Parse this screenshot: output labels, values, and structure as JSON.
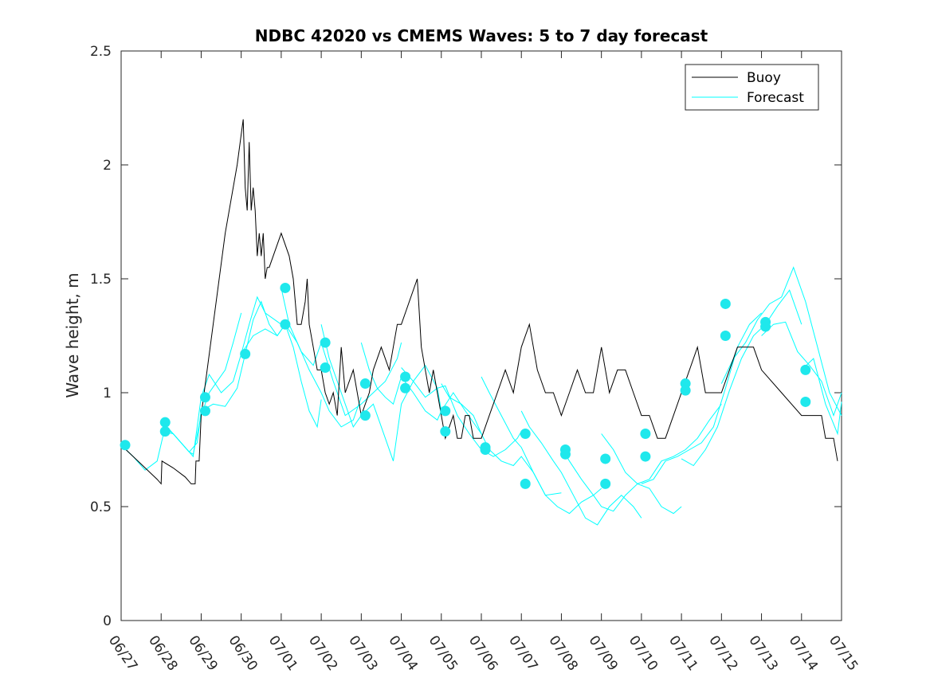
{
  "chart_data": {
    "type": "line",
    "title": "NDBC 42020 vs CMEMS Waves: 5 to 7 day forecast",
    "xlabel": "",
    "ylabel": "Wave height, m",
    "x_ticks": [
      "06/27",
      "06/28",
      "06/29",
      "06/30",
      "07/01",
      "07/02",
      "07/03",
      "07/04",
      "07/05",
      "07/06",
      "07/07",
      "07/08",
      "07/09",
      "07/10",
      "07/11",
      "07/12",
      "07/13",
      "07/14",
      "07/15"
    ],
    "y_ticks": [
      "0",
      "0.5",
      "1",
      "1.5",
      "2",
      "2.5"
    ],
    "xlim_days": [
      0,
      18
    ],
    "ylim": [
      0,
      2.5
    ],
    "legend": {
      "position": "top-right",
      "entries": [
        "Buoy",
        "Forecast"
      ]
    },
    "colors": {
      "buoy": "#000000",
      "forecast": "#00ffff",
      "marker": "#1fe8ec"
    },
    "series": [
      {
        "name": "Buoy",
        "x": [
          0,
          0.3,
          0.6,
          0.9,
          1.0,
          1.02,
          1.3,
          1.6,
          1.75,
          1.85,
          1.87,
          1.95,
          2.0,
          2.3,
          2.6,
          2.9,
          3.05,
          3.1,
          3.15,
          3.2,
          3.25,
          3.3,
          3.35,
          3.4,
          3.45,
          3.5,
          3.55,
          3.6,
          3.65,
          3.7,
          4.0,
          4.2,
          4.3,
          4.35,
          4.4,
          4.5,
          4.6,
          4.65,
          4.7,
          4.8,
          4.9,
          5.0,
          5.1,
          5.2,
          5.3,
          5.4,
          5.5,
          5.6,
          5.8,
          6.0,
          6.2,
          6.3,
          6.5,
          6.7,
          6.9,
          7.0,
          7.2,
          7.4,
          7.5,
          7.6,
          7.7,
          7.8,
          7.9,
          8.0,
          8.1,
          8.2,
          8.3,
          8.4,
          8.5,
          8.6,
          8.7,
          8.8,
          9.0,
          9.2,
          9.4,
          9.6,
          9.8,
          10.0,
          10.2,
          10.4,
          10.6,
          10.8,
          11.0,
          11.2,
          11.4,
          11.6,
          11.8,
          12.0,
          12.2,
          12.4,
          12.6,
          12.8,
          13.0,
          13.2,
          13.4,
          13.6,
          13.8,
          14.0,
          14.2,
          14.4,
          14.6,
          14.8,
          15.0,
          15.2,
          15.4,
          15.6,
          15.8,
          16.0,
          16.5,
          17.0,
          17.3,
          17.5,
          17.6,
          17.8,
          17.9
        ],
        "y": [
          0.77,
          0.72,
          0.67,
          0.62,
          0.6,
          0.7,
          0.67,
          0.63,
          0.6,
          0.6,
          0.7,
          0.7,
          0.9,
          1.3,
          1.7,
          2.0,
          2.2,
          1.9,
          1.8,
          2.1,
          1.8,
          1.9,
          1.8,
          1.6,
          1.7,
          1.6,
          1.7,
          1.5,
          1.55,
          1.55,
          1.7,
          1.6,
          1.5,
          1.4,
          1.3,
          1.3,
          1.4,
          1.5,
          1.3,
          1.2,
          1.1,
          1.1,
          1.0,
          0.95,
          1.0,
          0.9,
          1.2,
          1.0,
          1.1,
          0.9,
          1.0,
          1.1,
          1.2,
          1.1,
          1.3,
          1.3,
          1.4,
          1.5,
          1.2,
          1.1,
          1.0,
          1.1,
          1.0,
          0.9,
          0.8,
          0.85,
          0.9,
          0.8,
          0.8,
          0.9,
          0.9,
          0.8,
          0.8,
          0.9,
          1.0,
          1.1,
          1.0,
          1.2,
          1.3,
          1.1,
          1.0,
          1.0,
          0.9,
          1.0,
          1.1,
          1.0,
          1.0,
          1.2,
          1.0,
          1.1,
          1.1,
          1.0,
          0.9,
          0.9,
          0.8,
          0.8,
          0.9,
          1.0,
          1.1,
          1.2,
          1.0,
          1.0,
          1.0,
          1.1,
          1.2,
          1.2,
          1.2,
          1.1,
          1.0,
          0.9,
          0.9,
          0.9,
          0.8,
          0.8,
          0.7
        ]
      },
      {
        "name": "Forecast",
        "runs": [
          {
            "x": [
              0,
              0.3,
              0.6,
              0.9,
              1.1,
              1.3,
              1.5,
              1.7,
              1.9,
              2.0
            ],
            "y": [
              0.77,
              0.72,
              0.66,
              0.7,
              0.85,
              0.82,
              0.78,
              0.74,
              0.78,
              0.92
            ]
          },
          {
            "x": [
              1.0,
              1.2,
              1.5,
              1.7,
              1.8,
              2.0,
              2.2,
              2.4,
              2.6,
              2.8,
              3.0
            ],
            "y": [
              0.87,
              0.84,
              0.78,
              0.74,
              0.73,
              0.9,
              1.0,
              1.05,
              1.1,
              1.22,
              1.35
            ]
          },
          {
            "x": [
              1.0,
              1.3,
              1.6,
              1.8,
              2.0,
              2.2,
              2.5,
              2.8,
              3.0,
              3.2,
              3.4,
              3.6,
              4.0
            ],
            "y": [
              0.83,
              0.82,
              0.76,
              0.72,
              0.98,
              1.08,
              1.0,
              1.05,
              1.17,
              1.3,
              1.42,
              1.35,
              1.3
            ]
          },
          {
            "x": [
              2.0,
              2.3,
              2.6,
              2.9,
              3.1,
              3.3,
              3.5,
              3.7,
              3.9,
              4.1,
              4.3,
              4.5,
              4.7,
              4.9,
              5.0
            ],
            "y": [
              0.92,
              0.95,
              0.94,
              1.02,
              1.17,
              1.32,
              1.4,
              1.3,
              1.25,
              1.3,
              1.2,
              1.05,
              0.92,
              0.85,
              0.97
            ]
          },
          {
            "x": [
              3.0,
              3.3,
              3.6,
              3.9,
              4.1,
              4.4,
              4.7,
              5.0,
              5.2,
              5.5,
              5.8,
              6.0
            ],
            "y": [
              1.17,
              1.25,
              1.28,
              1.25,
              1.3,
              1.22,
              1.1,
              1.0,
              0.92,
              0.85,
              0.88,
              0.98
            ]
          },
          {
            "x": [
              4.0,
              4.2,
              4.5,
              4.8,
              5.0,
              5.3,
              5.6,
              6.0,
              6.3,
              6.6,
              6.9,
              7.0
            ],
            "y": [
              1.46,
              1.3,
              1.18,
              1.12,
              1.22,
              1.05,
              0.9,
              0.95,
              1.0,
              1.05,
              1.15,
              1.22
            ]
          },
          {
            "x": [
              5.0,
              5.2,
              5.5,
              5.8,
              6.0,
              6.3,
              6.6,
              6.8,
              7.0,
              7.3,
              7.6,
              7.9,
              8.0
            ],
            "y": [
              1.3,
              1.15,
              1.0,
              0.85,
              0.9,
              0.95,
              0.8,
              0.7,
              0.95,
              1.05,
              1.12,
              1.02,
              0.92
            ]
          },
          {
            "x": [
              6.0,
              6.2,
              6.4,
              6.6,
              6.8,
              7.0,
              7.3,
              7.6,
              7.9,
              8.0,
              8.3,
              8.6,
              9.0
            ],
            "y": [
              1.22,
              1.1,
              1.02,
              0.98,
              0.95,
              1.07,
              1.0,
              0.92,
              0.88,
              0.92,
              1.0,
              0.92,
              0.82
            ]
          },
          {
            "x": [
              7.0,
              7.3,
              7.6,
              7.9,
              8.1,
              8.4,
              8.7,
              9.0,
              9.3,
              9.6,
              9.9,
              10.0
            ],
            "y": [
              1.11,
              1.05,
              0.98,
              1.02,
              1.03,
              0.9,
              0.82,
              0.75,
              0.72,
              0.75,
              0.8,
              0.83
            ]
          },
          {
            "x": [
              8.0,
              8.2,
              8.5,
              8.8,
              9.0,
              9.2,
              9.5,
              9.8,
              10.0,
              10.3,
              10.6,
              11.0
            ],
            "y": [
              1.04,
              0.98,
              0.95,
              0.9,
              0.82,
              0.75,
              0.7,
              0.68,
              0.72,
              0.65,
              0.55,
              0.56
            ]
          },
          {
            "x": [
              9.0,
              9.2,
              9.5,
              9.8,
              10.0,
              10.3,
              10.6,
              10.9,
              11.2,
              11.5,
              11.8,
              12.0
            ],
            "y": [
              1.07,
              1.0,
              0.9,
              0.8,
              0.76,
              0.65,
              0.55,
              0.5,
              0.47,
              0.52,
              0.55,
              0.58
            ]
          },
          {
            "x": [
              10.0,
              10.2,
              10.5,
              10.8,
              11.0,
              11.3,
              11.6,
              11.9,
              12.2,
              12.5,
              12.8,
              13.0
            ],
            "y": [
              0.92,
              0.85,
              0.78,
              0.7,
              0.65,
              0.55,
              0.45,
              0.42,
              0.5,
              0.55,
              0.5,
              0.45
            ]
          },
          {
            "x": [
              11.0,
              11.2,
              11.5,
              11.8,
              12.0,
              12.3,
              12.6,
              12.9,
              13.2,
              13.5,
              13.8,
              14.0
            ],
            "y": [
              0.76,
              0.7,
              0.62,
              0.55,
              0.5,
              0.48,
              0.55,
              0.6,
              0.58,
              0.5,
              0.47,
              0.5
            ]
          },
          {
            "x": [
              12.0,
              12.3,
              12.6,
              12.9,
              13.2,
              13.5,
              13.8,
              14.1,
              14.4,
              14.7,
              15.0
            ],
            "y": [
              0.82,
              0.75,
              0.65,
              0.6,
              0.62,
              0.7,
              0.72,
              0.75,
              0.8,
              0.88,
              0.95
            ]
          },
          {
            "x": [
              13.0,
              13.3,
              13.6,
              13.9,
              14.2,
              14.5,
              14.8,
              15.1,
              15.4,
              15.7,
              16.0
            ],
            "y": [
              0.6,
              0.62,
              0.7,
              0.72,
              0.75,
              0.78,
              0.85,
              1.02,
              1.2,
              1.3,
              1.35
            ]
          },
          {
            "x": [
              14.0,
              14.3,
              14.6,
              14.9,
              15.2,
              15.5,
              15.8,
              16.1,
              16.4,
              16.7,
              17.0
            ],
            "y": [
              0.71,
              0.68,
              0.75,
              0.85,
              1.01,
              1.15,
              1.25,
              1.3,
              1.38,
              1.45,
              1.3
            ]
          },
          {
            "x": [
              15.0,
              15.3,
              15.6,
              15.9,
              16.2,
              16.5,
              16.8,
              17.1,
              17.4,
              17.7,
              18.0
            ],
            "y": [
              1.04,
              1.15,
              1.22,
              1.32,
              1.39,
              1.42,
              1.55,
              1.4,
              1.2,
              1.0,
              0.9
            ]
          },
          {
            "x": [
              16.0,
              16.3,
              16.6,
              16.9,
              17.2,
              17.5,
              17.8,
              18.0
            ],
            "y": [
              1.25,
              1.3,
              1.31,
              1.18,
              1.12,
              1.05,
              0.9,
              1.0
            ]
          },
          {
            "x": [
              17.0,
              17.3,
              17.6,
              17.9,
              18.0
            ],
            "y": [
              1.1,
              1.15,
              0.95,
              0.82,
              0.96
            ]
          }
        ]
      }
    ],
    "markers": {
      "x": [
        0.1,
        1.1,
        1.1,
        2.1,
        2.1,
        3.1,
        4.1,
        4.1,
        5.1,
        5.1,
        6.1,
        6.1,
        7.1,
        7.1,
        8.1,
        8.1,
        9.1,
        9.1,
        10.1,
        10.1,
        11.1,
        11.1,
        12.1,
        12.1,
        13.1,
        13.1,
        14.1,
        14.1,
        15.1,
        15.1,
        16.1,
        16.1,
        17.1,
        17.1
      ],
      "y": [
        0.77,
        0.87,
        0.83,
        0.98,
        0.92,
        1.17,
        1.46,
        1.3,
        1.22,
        1.11,
        1.04,
        0.9,
        1.07,
        1.02,
        0.92,
        0.83,
        0.76,
        0.75,
        0.82,
        0.6,
        0.75,
        0.73,
        0.71,
        0.6,
        0.82,
        0.72,
        1.04,
        1.01,
        1.39,
        1.25,
        1.31,
        1.29,
        1.1,
        0.96
      ]
    }
  }
}
